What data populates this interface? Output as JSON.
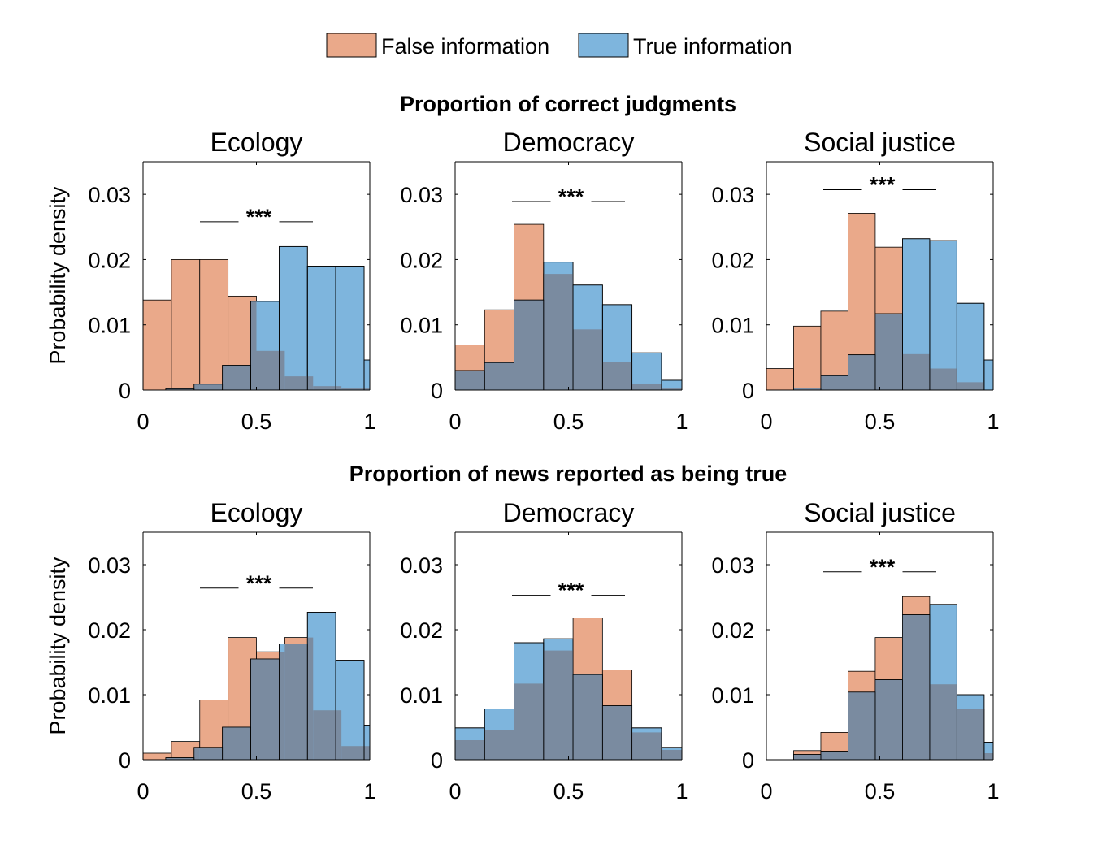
{
  "legend": {
    "position": "top-center",
    "items": [
      {
        "label": "False information",
        "color": "#EAA98A"
      },
      {
        "label": "True information",
        "color": "#7EB5DD"
      }
    ]
  },
  "overlap_color": "#7A8BA0",
  "row_titles": [
    "Proportion of correct judgments",
    "Proportion of news reported as being true"
  ],
  "ylabel": "Probability density",
  "chart_data": [
    {
      "type": "histogram",
      "row": 0,
      "col": 0,
      "title": "Ecology",
      "xlim": [
        0,
        1
      ],
      "ylim": [
        0,
        0.035
      ],
      "xticks": [
        "0",
        "0.5",
        "1"
      ],
      "yticks": [
        "0",
        "0.01",
        "0.02",
        "0.03"
      ],
      "significance": "***",
      "significance_y": 0.0258,
      "series": [
        {
          "name": "False information",
          "bins": [
            [
              0,
              0.125,
              0.0138
            ],
            [
              0.125,
              0.25,
              0.02
            ],
            [
              0.25,
              0.375,
              0.02
            ],
            [
              0.375,
              0.5,
              0.0144
            ],
            [
              0.5,
              0.625,
              0.006
            ],
            [
              0.625,
              0.75,
              0.0021
            ],
            [
              0.75,
              0.875,
              0.0006
            ],
            [
              0.875,
              1.0,
              0.0003
            ]
          ]
        },
        {
          "name": "True information",
          "bins": [
            [
              0.1,
              0.225,
              0.0002
            ],
            [
              0.225,
              0.35,
              0.0009
            ],
            [
              0.35,
              0.475,
              0.0038
            ],
            [
              0.475,
              0.6,
              0.0136
            ],
            [
              0.6,
              0.725,
              0.022
            ],
            [
              0.725,
              0.85,
              0.019
            ],
            [
              0.85,
              0.975,
              0.019
            ],
            [
              0.975,
              1.1,
              0.0046
            ]
          ]
        }
      ]
    },
    {
      "type": "histogram",
      "row": 0,
      "col": 1,
      "title": "Democracy",
      "xlim": [
        0,
        1
      ],
      "ylim": [
        0,
        0.035
      ],
      "xticks": [
        "0",
        "0.5",
        "1"
      ],
      "yticks": [
        "0",
        "0.01",
        "0.02",
        "0.03"
      ],
      "significance": "***",
      "significance_y": 0.0289,
      "series": [
        {
          "name": "False information",
          "bins": [
            [
              0,
              0.13,
              0.0069
            ],
            [
              0.13,
              0.26,
              0.0123
            ],
            [
              0.26,
              0.39,
              0.0254
            ],
            [
              0.39,
              0.52,
              0.0178
            ],
            [
              0.52,
              0.65,
              0.0093
            ],
            [
              0.65,
              0.78,
              0.0043
            ],
            [
              0.78,
              0.91,
              0.001
            ],
            [
              0.91,
              1.04,
              0.0003
            ]
          ]
        },
        {
          "name": "True information",
          "bins": [
            [
              0,
              0.13,
              0.003
            ],
            [
              0.13,
              0.26,
              0.0042
            ],
            [
              0.26,
              0.39,
              0.0138
            ],
            [
              0.39,
              0.52,
              0.0196
            ],
            [
              0.52,
              0.65,
              0.0161
            ],
            [
              0.65,
              0.78,
              0.0131
            ],
            [
              0.78,
              0.91,
              0.0057
            ],
            [
              0.91,
              1.04,
              0.0015
            ]
          ]
        }
      ]
    },
    {
      "type": "histogram",
      "row": 0,
      "col": 2,
      "title": "Social justice",
      "xlim": [
        0,
        1
      ],
      "ylim": [
        0,
        0.035
      ],
      "xticks": [
        "0",
        "0.5",
        "1"
      ],
      "yticks": [
        "0",
        "0.01",
        "0.02",
        "0.03"
      ],
      "significance": "***",
      "significance_y": 0.0307,
      "series": [
        {
          "name": "False information",
          "bins": [
            [
              0,
              0.12,
              0.0033
            ],
            [
              0.12,
              0.24,
              0.0098
            ],
            [
              0.24,
              0.36,
              0.0121
            ],
            [
              0.36,
              0.48,
              0.0271
            ],
            [
              0.48,
              0.6,
              0.0219
            ],
            [
              0.6,
              0.72,
              0.0055
            ],
            [
              0.72,
              0.84,
              0.0033
            ],
            [
              0.84,
              0.96,
              0.0012
            ]
          ]
        },
        {
          "name": "True information",
          "bins": [
            [
              0.12,
              0.24,
              0.0003
            ],
            [
              0.24,
              0.36,
              0.0022
            ],
            [
              0.36,
              0.48,
              0.0054
            ],
            [
              0.48,
              0.6,
              0.0117
            ],
            [
              0.6,
              0.72,
              0.0232
            ],
            [
              0.72,
              0.84,
              0.0229
            ],
            [
              0.84,
              0.96,
              0.0133
            ],
            [
              0.96,
              1.08,
              0.0046
            ]
          ]
        }
      ]
    },
    {
      "type": "histogram",
      "row": 1,
      "col": 0,
      "title": "Ecology",
      "xlim": [
        0,
        1
      ],
      "ylim": [
        0,
        0.035
      ],
      "xticks": [
        "0",
        "0.5",
        "1"
      ],
      "yticks": [
        "0",
        "0.01",
        "0.02",
        "0.03"
      ],
      "significance": "***",
      "significance_y": 0.0264,
      "series": [
        {
          "name": "False information",
          "bins": [
            [
              0,
              0.125,
              0.001
            ],
            [
              0.125,
              0.25,
              0.0028
            ],
            [
              0.25,
              0.375,
              0.0092
            ],
            [
              0.375,
              0.5,
              0.0188
            ],
            [
              0.5,
              0.625,
              0.0166
            ],
            [
              0.625,
              0.75,
              0.0188
            ],
            [
              0.75,
              0.875,
              0.0076
            ],
            [
              0.875,
              1.0,
              0.0021
            ]
          ]
        },
        {
          "name": "True information",
          "bins": [
            [
              0.1,
              0.225,
              0.0003
            ],
            [
              0.225,
              0.35,
              0.0019
            ],
            [
              0.35,
              0.475,
              0.005
            ],
            [
              0.475,
              0.6,
              0.0155
            ],
            [
              0.6,
              0.725,
              0.0178
            ],
            [
              0.725,
              0.85,
              0.0227
            ],
            [
              0.85,
              0.975,
              0.0153
            ],
            [
              0.975,
              1.1,
              0.0053
            ]
          ]
        }
      ]
    },
    {
      "type": "histogram",
      "row": 1,
      "col": 1,
      "title": "Democracy",
      "xlim": [
        0,
        1
      ],
      "ylim": [
        0,
        0.035
      ],
      "xticks": [
        "0",
        "0.5",
        "1"
      ],
      "yticks": [
        "0",
        "0.01",
        "0.02",
        "0.03"
      ],
      "significance": "***",
      "significance_y": 0.0253,
      "series": [
        {
          "name": "False information",
          "bins": [
            [
              0,
              0.13,
              0.003
            ],
            [
              0.13,
              0.26,
              0.0045
            ],
            [
              0.26,
              0.39,
              0.0117
            ],
            [
              0.39,
              0.52,
              0.0168
            ],
            [
              0.52,
              0.65,
              0.0218
            ],
            [
              0.65,
              0.78,
              0.0138
            ],
            [
              0.78,
              0.91,
              0.0042
            ],
            [
              0.91,
              1.04,
              0.0015
            ]
          ]
        },
        {
          "name": "True information",
          "bins": [
            [
              0,
              0.13,
              0.0049
            ],
            [
              0.13,
              0.26,
              0.0078
            ],
            [
              0.26,
              0.39,
              0.018
            ],
            [
              0.39,
              0.52,
              0.0186
            ],
            [
              0.52,
              0.65,
              0.0131
            ],
            [
              0.65,
              0.78,
              0.0083
            ],
            [
              0.78,
              0.91,
              0.0049
            ],
            [
              0.91,
              1.04,
              0.0019
            ]
          ]
        }
      ]
    },
    {
      "type": "histogram",
      "row": 1,
      "col": 2,
      "title": "Social justice",
      "xlim": [
        0,
        1
      ],
      "ylim": [
        0,
        0.035
      ],
      "xticks": [
        "0",
        "0.5",
        "1"
      ],
      "yticks": [
        "0",
        "0.01",
        "0.02",
        "0.03"
      ],
      "significance": "***",
      "significance_y": 0.0289,
      "series": [
        {
          "name": "False information",
          "bins": [
            [
              0.12,
              0.24,
              0.0014
            ],
            [
              0.24,
              0.36,
              0.0042
            ],
            [
              0.36,
              0.48,
              0.0136
            ],
            [
              0.48,
              0.6,
              0.0188
            ],
            [
              0.6,
              0.72,
              0.0251
            ],
            [
              0.72,
              0.84,
              0.0116
            ],
            [
              0.84,
              0.96,
              0.0078
            ],
            [
              0.96,
              1.08,
              0.001
            ]
          ]
        },
        {
          "name": "True information",
          "bins": [
            [
              0.12,
              0.24,
              0.0008
            ],
            [
              0.24,
              0.36,
              0.0013
            ],
            [
              0.36,
              0.48,
              0.0104
            ],
            [
              0.48,
              0.6,
              0.0123
            ],
            [
              0.6,
              0.72,
              0.0223
            ],
            [
              0.72,
              0.84,
              0.0239
            ],
            [
              0.84,
              0.96,
              0.01
            ],
            [
              0.96,
              1.08,
              0.0027
            ]
          ]
        }
      ]
    }
  ]
}
